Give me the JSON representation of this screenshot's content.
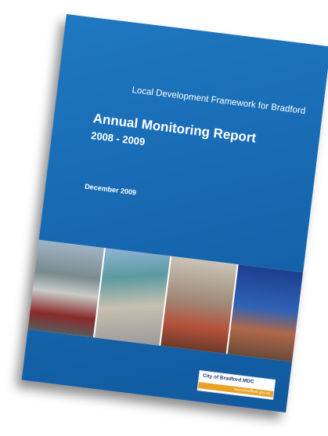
{
  "cover": {
    "subtitle": "Local Development Framework for Bradford",
    "title": "Annual Monitoring Report",
    "years": "2008 - 2009",
    "date": "December 2009",
    "logo": {
      "name": "City of Bradford MDC",
      "url": "www.bradford.gov.uk"
    }
  }
}
